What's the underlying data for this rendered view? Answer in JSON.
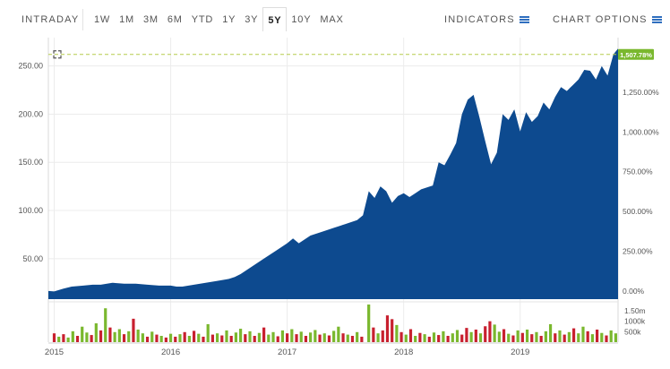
{
  "toolbar": {
    "range_label": "INTRADAY",
    "ranges": [
      "1W",
      "1M",
      "3M",
      "6M",
      "YTD",
      "1Y",
      "3Y",
      "5Y",
      "10Y",
      "MAX"
    ],
    "active_range": "5Y",
    "indicators_label": "INDICATORS",
    "chart_options_label": "CHART OPTIONS"
  },
  "colors": {
    "area_fill": "#0d4a8f",
    "reference_line": "#b5cc4a",
    "percent_badge": "#7ab82e",
    "volume_up": "#7ab82e",
    "volume_down": "#c8202f"
  },
  "chart_data": {
    "type": "area",
    "title": "",
    "xlabel": "",
    "ylabel": "",
    "x_ticks": [
      "2015",
      "2016",
      "2017",
      "2018",
      "2019"
    ],
    "x_range": [
      2014.95,
      2019.84
    ],
    "ylim": [
      8,
      272
    ],
    "y_ticks": [
      "250.00",
      "200.00",
      "150.00",
      "100.00",
      "50.00"
    ],
    "y_tick_values": [
      250,
      200,
      150,
      100,
      50
    ],
    "y2_ticks": [
      "1,250.00%",
      "1,000.00%",
      "750.00%",
      "500.00%",
      "250.00%",
      "0.00%"
    ],
    "y2_tick_values": [
      1250,
      1000,
      750,
      500,
      250,
      0
    ],
    "last_percent_label": "1,507.78%",
    "reference_value": 262,
    "series": [
      {
        "x": [
          2014.95,
          2015.0,
          2015.08,
          2015.15,
          2015.25,
          2015.33,
          2015.4,
          2015.5,
          2015.6,
          2015.7,
          2015.8,
          2015.9,
          2016.0,
          2016.05,
          2016.1,
          2016.2,
          2016.3,
          2016.4,
          2016.5,
          2016.55,
          2016.6,
          2016.7,
          2016.8,
          2016.9,
          2017.0,
          2017.05,
          2017.1,
          2017.2,
          2017.3,
          2017.4,
          2017.5,
          2017.6,
          2017.65,
          2017.7,
          2017.75,
          2017.8,
          2017.85,
          2017.9,
          2017.95,
          2018.0,
          2018.05,
          2018.1,
          2018.15,
          2018.2,
          2018.25,
          2018.3,
          2018.35,
          2018.4,
          2018.45,
          2018.5,
          2018.55,
          2018.6,
          2018.65,
          2018.7,
          2018.75,
          2018.8,
          2018.85,
          2018.9,
          2018.95,
          2019.0,
          2019.05,
          2019.1,
          2019.15,
          2019.2,
          2019.25,
          2019.3,
          2019.35,
          2019.4,
          2019.45,
          2019.5,
          2019.55,
          2019.6,
          2019.65,
          2019.7,
          2019.75,
          2019.8,
          2019.84
        ],
        "values": [
          16.5,
          16,
          19,
          21,
          22,
          23,
          23,
          25,
          24,
          24,
          23,
          22,
          22,
          21,
          21,
          23,
          25,
          27,
          29,
          31,
          34,
          42,
          50,
          58,
          66,
          71,
          66,
          74,
          78,
          82,
          86,
          90,
          95,
          120,
          113,
          125,
          120,
          108,
          115,
          118,
          114,
          118,
          122,
          124,
          126,
          150,
          147,
          158,
          170,
          200,
          215,
          220,
          197,
          172,
          148,
          160,
          200,
          194,
          205,
          182,
          202,
          192,
          198,
          212,
          205,
          218,
          228,
          224,
          230,
          236,
          246,
          245,
          236,
          250,
          240,
          262,
          268
        ]
      }
    ],
    "volume": {
      "labels": [
        "1.50m",
        "1000k",
        "500k"
      ],
      "label_values": [
        1500,
        1000,
        500
      ],
      "max": 1800,
      "bars": [
        {
          "x": 2015.0,
          "v": 420,
          "up": false
        },
        {
          "x": 2015.04,
          "v": 260,
          "up": true
        },
        {
          "x": 2015.08,
          "v": 380,
          "up": false
        },
        {
          "x": 2015.12,
          "v": 220,
          "up": true
        },
        {
          "x": 2015.16,
          "v": 520,
          "up": true
        },
        {
          "x": 2015.2,
          "v": 300,
          "up": false
        },
        {
          "x": 2015.24,
          "v": 740,
          "up": true
        },
        {
          "x": 2015.28,
          "v": 460,
          "up": true
        },
        {
          "x": 2015.32,
          "v": 340,
          "up": false
        },
        {
          "x": 2015.36,
          "v": 900,
          "up": true
        },
        {
          "x": 2015.4,
          "v": 560,
          "up": false
        },
        {
          "x": 2015.44,
          "v": 1620,
          "up": true
        },
        {
          "x": 2015.48,
          "v": 700,
          "up": false
        },
        {
          "x": 2015.52,
          "v": 480,
          "up": true
        },
        {
          "x": 2015.56,
          "v": 620,
          "up": true
        },
        {
          "x": 2015.6,
          "v": 380,
          "up": false
        },
        {
          "x": 2015.64,
          "v": 520,
          "up": true
        },
        {
          "x": 2015.68,
          "v": 1120,
          "up": false
        },
        {
          "x": 2015.72,
          "v": 600,
          "up": true
        },
        {
          "x": 2015.76,
          "v": 420,
          "up": true
        },
        {
          "x": 2015.8,
          "v": 260,
          "up": false
        },
        {
          "x": 2015.84,
          "v": 500,
          "up": true
        },
        {
          "x": 2015.88,
          "v": 360,
          "up": false
        },
        {
          "x": 2015.92,
          "v": 300,
          "up": true
        },
        {
          "x": 2015.96,
          "v": 220,
          "up": false
        },
        {
          "x": 2016.0,
          "v": 400,
          "up": true
        },
        {
          "x": 2016.04,
          "v": 260,
          "up": false
        },
        {
          "x": 2016.08,
          "v": 380,
          "up": true
        },
        {
          "x": 2016.12,
          "v": 480,
          "up": false
        },
        {
          "x": 2016.16,
          "v": 300,
          "up": true
        },
        {
          "x": 2016.2,
          "v": 540,
          "up": false
        },
        {
          "x": 2016.24,
          "v": 400,
          "up": true
        },
        {
          "x": 2016.28,
          "v": 260,
          "up": false
        },
        {
          "x": 2016.32,
          "v": 860,
          "up": true
        },
        {
          "x": 2016.36,
          "v": 360,
          "up": false
        },
        {
          "x": 2016.4,
          "v": 420,
          "up": true
        },
        {
          "x": 2016.44,
          "v": 320,
          "up": false
        },
        {
          "x": 2016.48,
          "v": 560,
          "up": true
        },
        {
          "x": 2016.52,
          "v": 300,
          "up": false
        },
        {
          "x": 2016.56,
          "v": 460,
          "up": true
        },
        {
          "x": 2016.6,
          "v": 640,
          "up": true
        },
        {
          "x": 2016.64,
          "v": 380,
          "up": false
        },
        {
          "x": 2016.68,
          "v": 520,
          "up": true
        },
        {
          "x": 2016.72,
          "v": 300,
          "up": false
        },
        {
          "x": 2016.76,
          "v": 440,
          "up": true
        },
        {
          "x": 2016.8,
          "v": 700,
          "up": false
        },
        {
          "x": 2016.84,
          "v": 360,
          "up": true
        },
        {
          "x": 2016.88,
          "v": 480,
          "up": true
        },
        {
          "x": 2016.92,
          "v": 280,
          "up": false
        },
        {
          "x": 2016.96,
          "v": 560,
          "up": true
        },
        {
          "x": 2017.0,
          "v": 420,
          "up": false
        },
        {
          "x": 2017.04,
          "v": 620,
          "up": true
        },
        {
          "x": 2017.08,
          "v": 380,
          "up": false
        },
        {
          "x": 2017.12,
          "v": 500,
          "up": true
        },
        {
          "x": 2017.16,
          "v": 300,
          "up": false
        },
        {
          "x": 2017.2,
          "v": 460,
          "up": true
        },
        {
          "x": 2017.24,
          "v": 580,
          "up": true
        },
        {
          "x": 2017.28,
          "v": 360,
          "up": false
        },
        {
          "x": 2017.32,
          "v": 420,
          "up": true
        },
        {
          "x": 2017.36,
          "v": 320,
          "up": false
        },
        {
          "x": 2017.4,
          "v": 540,
          "up": true
        },
        {
          "x": 2017.44,
          "v": 740,
          "up": true
        },
        {
          "x": 2017.48,
          "v": 420,
          "up": false
        },
        {
          "x": 2017.52,
          "v": 360,
          "up": true
        },
        {
          "x": 2017.56,
          "v": 300,
          "up": false
        },
        {
          "x": 2017.6,
          "v": 480,
          "up": true
        },
        {
          "x": 2017.64,
          "v": 260,
          "up": false
        },
        {
          "x": 2017.7,
          "v": 1800,
          "up": true
        },
        {
          "x": 2017.74,
          "v": 700,
          "up": false
        },
        {
          "x": 2017.78,
          "v": 420,
          "up": true
        },
        {
          "x": 2017.82,
          "v": 560,
          "up": false
        },
        {
          "x": 2017.86,
          "v": 1280,
          "up": false
        },
        {
          "x": 2017.9,
          "v": 1100,
          "up": false
        },
        {
          "x": 2017.94,
          "v": 820,
          "up": true
        },
        {
          "x": 2017.98,
          "v": 480,
          "up": false
        },
        {
          "x": 2018.02,
          "v": 360,
          "up": true
        },
        {
          "x": 2018.06,
          "v": 620,
          "up": false
        },
        {
          "x": 2018.1,
          "v": 300,
          "up": true
        },
        {
          "x": 2018.14,
          "v": 440,
          "up": false
        },
        {
          "x": 2018.18,
          "v": 380,
          "up": true
        },
        {
          "x": 2018.22,
          "v": 260,
          "up": false
        },
        {
          "x": 2018.26,
          "v": 460,
          "up": true
        },
        {
          "x": 2018.3,
          "v": 340,
          "up": false
        },
        {
          "x": 2018.34,
          "v": 520,
          "up": true
        },
        {
          "x": 2018.38,
          "v": 300,
          "up": false
        },
        {
          "x": 2018.42,
          "v": 420,
          "up": true
        },
        {
          "x": 2018.46,
          "v": 580,
          "up": true
        },
        {
          "x": 2018.5,
          "v": 360,
          "up": false
        },
        {
          "x": 2018.54,
          "v": 680,
          "up": false
        },
        {
          "x": 2018.58,
          "v": 480,
          "up": true
        },
        {
          "x": 2018.62,
          "v": 600,
          "up": false
        },
        {
          "x": 2018.66,
          "v": 420,
          "up": true
        },
        {
          "x": 2018.7,
          "v": 760,
          "up": false
        },
        {
          "x": 2018.74,
          "v": 1000,
          "up": false
        },
        {
          "x": 2018.78,
          "v": 840,
          "up": true
        },
        {
          "x": 2018.82,
          "v": 500,
          "up": true
        },
        {
          "x": 2018.86,
          "v": 620,
          "up": false
        },
        {
          "x": 2018.9,
          "v": 400,
          "up": true
        },
        {
          "x": 2018.94,
          "v": 320,
          "up": false
        },
        {
          "x": 2018.98,
          "v": 560,
          "up": true
        },
        {
          "x": 2019.02,
          "v": 440,
          "up": false
        },
        {
          "x": 2019.06,
          "v": 600,
          "up": true
        },
        {
          "x": 2019.1,
          "v": 380,
          "up": false
        },
        {
          "x": 2019.14,
          "v": 480,
          "up": true
        },
        {
          "x": 2019.18,
          "v": 300,
          "up": false
        },
        {
          "x": 2019.22,
          "v": 520,
          "up": true
        },
        {
          "x": 2019.26,
          "v": 860,
          "up": true
        },
        {
          "x": 2019.3,
          "v": 420,
          "up": false
        },
        {
          "x": 2019.34,
          "v": 560,
          "up": true
        },
        {
          "x": 2019.38,
          "v": 360,
          "up": false
        },
        {
          "x": 2019.42,
          "v": 480,
          "up": true
        },
        {
          "x": 2019.46,
          "v": 660,
          "up": false
        },
        {
          "x": 2019.5,
          "v": 420,
          "up": true
        },
        {
          "x": 2019.54,
          "v": 740,
          "up": true
        },
        {
          "x": 2019.58,
          "v": 520,
          "up": false
        },
        {
          "x": 2019.62,
          "v": 380,
          "up": true
        },
        {
          "x": 2019.66,
          "v": 600,
          "up": false
        },
        {
          "x": 2019.7,
          "v": 440,
          "up": true
        },
        {
          "x": 2019.74,
          "v": 320,
          "up": false
        },
        {
          "x": 2019.78,
          "v": 560,
          "up": true
        },
        {
          "x": 2019.82,
          "v": 420,
          "up": true
        }
      ]
    }
  }
}
